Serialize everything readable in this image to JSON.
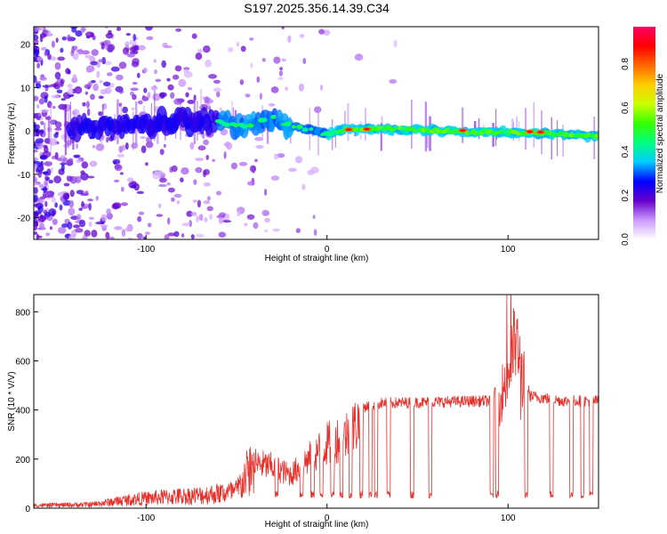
{
  "figure": {
    "title": "S197.2025.356.14.39.C34"
  },
  "chart_data": [
    {
      "type": "heatmap",
      "name": "spectrogram",
      "xlabel": "Height of straight line (km)",
      "ylabel": "Frequency (Hz)",
      "xlim": [
        -162,
        150
      ],
      "ylim": [
        -25,
        24
      ],
      "xticks": [
        -100,
        0,
        100
      ],
      "yticks": [
        20,
        10,
        0,
        -10,
        -20
      ],
      "colorbar": {
        "label": "Normalized spectral amplitude",
        "range": [
          0,
          0.97
        ],
        "ticks": [
          0,
          0.2,
          0.4,
          0.6,
          0.8
        ],
        "tick_labels": [
          "0.0",
          "0.2",
          "0.4",
          "0.6",
          "0.8"
        ],
        "colormap": [
          "#ffffff",
          "#cc99ff",
          "#6600cc",
          "#0000ff",
          "#00ccff",
          "#00ff80",
          "#33ff00",
          "#ccff00",
          "#ffcc00",
          "#ff6600",
          "#ff0000",
          "#ff0066"
        ]
      },
      "ridge": [
        [
          -140,
          0.5
        ],
        [
          -120,
          1
        ],
        [
          -100,
          1.5
        ],
        [
          -80,
          2.5
        ],
        [
          -60,
          2
        ],
        [
          -45,
          1
        ],
        [
          -30,
          3
        ],
        [
          -20,
          1
        ],
        [
          -10,
          0.3
        ],
        [
          0,
          -1
        ],
        [
          10,
          0.4
        ],
        [
          40,
          0.4
        ],
        [
          80,
          -0.2
        ],
        [
          100,
          -0.3
        ],
        [
          130,
          -0.8
        ],
        [
          150,
          -1.3
        ]
      ],
      "hot_spots": [
        [
          12,
          0.3
        ],
        [
          22,
          0.4
        ],
        [
          75,
          0.1
        ],
        [
          112,
          -0.2
        ],
        [
          118,
          -0.3
        ]
      ]
    },
    {
      "type": "line",
      "name": "snr",
      "xlabel": "Height of straight line (km)",
      "ylabel": "SNR (10 * V/V)",
      "xlim": [
        -162,
        150
      ],
      "ylim": [
        0,
        870
      ],
      "xticks": [
        -100,
        0,
        100
      ],
      "yticks": [
        0,
        200,
        400,
        600,
        800
      ],
      "color": "#e8302b",
      "envelope": [
        [
          -162,
          15
        ],
        [
          -130,
          20
        ],
        [
          -110,
          45
        ],
        [
          -90,
          60
        ],
        [
          -70,
          70
        ],
        [
          -50,
          90
        ],
        [
          -42,
          220
        ],
        [
          -30,
          200
        ],
        [
          -20,
          160
        ],
        [
          -10,
          240
        ],
        [
          0,
          310
        ],
        [
          10,
          350
        ],
        [
          18,
          420
        ],
        [
          30,
          440
        ],
        [
          60,
          445
        ],
        [
          90,
          450
        ],
        [
          96,
          520
        ],
        [
          100,
          620
        ],
        [
          104,
          780
        ],
        [
          107,
          650
        ],
        [
          112,
          470
        ],
        [
          130,
          450
        ],
        [
          150,
          450
        ]
      ],
      "dropouts": [
        -28,
        -14,
        -8,
        -3,
        3,
        8,
        13,
        19,
        24,
        27,
        34,
        47,
        57,
        91,
        94,
        110,
        124,
        135,
        141,
        146
      ]
    }
  ]
}
